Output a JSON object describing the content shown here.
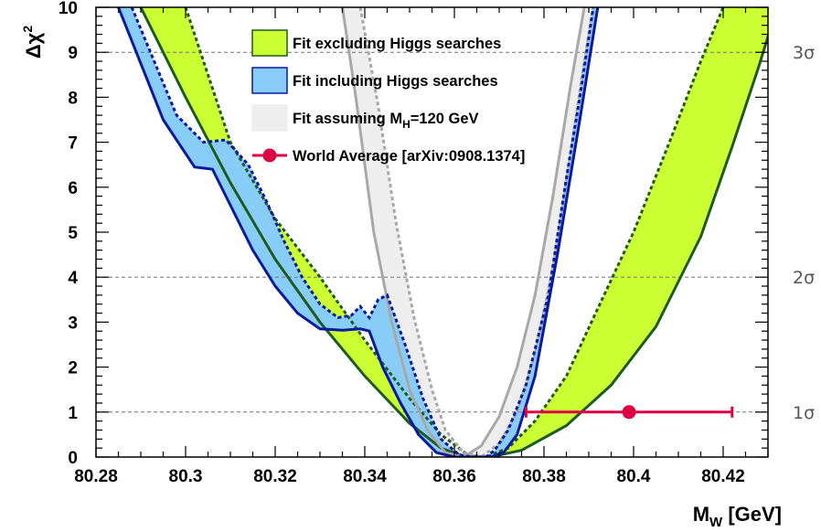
{
  "chart_data": {
    "type": "area",
    "xlabel": {
      "main": "M",
      "sub": "W",
      "rest": " [GeV]"
    },
    "ylabel": {
      "main": "Δχ",
      "sup": "2"
    },
    "xlim": [
      80.28,
      80.43
    ],
    "ylim": [
      0,
      10
    ],
    "x_ticks": [
      "80.28",
      "80.3",
      "80.32",
      "80.34",
      "80.36",
      "80.38",
      "80.4",
      "80.42"
    ],
    "x_tick_values": [
      80.28,
      80.3,
      80.32,
      80.34,
      80.36,
      80.38,
      80.4,
      80.42
    ],
    "y_ticks": [
      "0",
      "1",
      "2",
      "3",
      "4",
      "5",
      "6",
      "7",
      "8",
      "9",
      "10"
    ],
    "y_tick_values": [
      0,
      1,
      2,
      3,
      4,
      5,
      6,
      7,
      8,
      9,
      10
    ],
    "sigma_levels": [
      {
        "value": 1,
        "label": "1σ"
      },
      {
        "value": 4,
        "label": "2σ"
      },
      {
        "value": 9,
        "label": "3σ"
      }
    ],
    "colors": {
      "excl_fill": "#ccff33",
      "excl_line": "#1f5a1f",
      "incl_fill": "#88ccf8",
      "incl_line": "#0a1aa0",
      "mh120_fill": "#eeeeee",
      "mh120_line": "#a8a8a8",
      "world_avg": "#dd0044"
    },
    "series": [
      {
        "name": "Fit excluding Higgs searches",
        "solid": [
          [
            80.29,
            10
          ],
          [
            80.3,
            8.0
          ],
          [
            80.31,
            6.1
          ],
          [
            80.32,
            4.4
          ],
          [
            80.33,
            3.0
          ],
          [
            80.34,
            1.8
          ],
          [
            80.35,
            0.75
          ],
          [
            80.357,
            0.2
          ],
          [
            80.362,
            0.02
          ],
          [
            80.368,
            0.0
          ],
          [
            80.375,
            0.15
          ],
          [
            80.385,
            0.7
          ],
          [
            80.395,
            1.6
          ],
          [
            80.405,
            2.9
          ],
          [
            80.415,
            4.9
          ],
          [
            80.422,
            6.9
          ],
          [
            80.428,
            8.7
          ],
          [
            80.432,
            10
          ]
        ],
        "dotted": [
          [
            80.3,
            10
          ],
          [
            80.305,
            8.5
          ],
          [
            80.31,
            7.0
          ],
          [
            80.32,
            5.3
          ],
          [
            80.33,
            4.0
          ],
          [
            80.34,
            2.6
          ],
          [
            80.35,
            1.3
          ],
          [
            80.357,
            0.5
          ],
          [
            80.363,
            0.05
          ],
          [
            80.367,
            0.0
          ],
          [
            80.372,
            0.2
          ],
          [
            80.378,
            0.8
          ],
          [
            80.385,
            1.8
          ],
          [
            80.392,
            3.3
          ],
          [
            80.4,
            5.0
          ],
          [
            80.408,
            7.0
          ],
          [
            80.415,
            8.8
          ],
          [
            80.42,
            10
          ]
        ]
      },
      {
        "name": "Fit including Higgs searches",
        "solid": [
          [
            80.285,
            10
          ],
          [
            80.295,
            7.5
          ],
          [
            80.302,
            6.45
          ],
          [
            80.306,
            6.4
          ],
          [
            80.31,
            5.6
          ],
          [
            80.315,
            4.6
          ],
          [
            80.32,
            3.8
          ],
          [
            80.325,
            3.2
          ],
          [
            80.33,
            2.85
          ],
          [
            80.335,
            2.82
          ],
          [
            80.339,
            2.85
          ],
          [
            80.341,
            2.8
          ],
          [
            80.344,
            2.0
          ],
          [
            80.348,
            1.2
          ],
          [
            80.352,
            0.5
          ],
          [
            80.356,
            0.1
          ],
          [
            80.36,
            0.0
          ],
          [
            80.368,
            0.0
          ],
          [
            80.371,
            0.1
          ],
          [
            80.374,
            0.5
          ],
          [
            80.378,
            1.8
          ],
          [
            80.383,
            4.5
          ],
          [
            80.388,
            7.5
          ],
          [
            80.392,
            10
          ]
        ],
        "dotted": [
          [
            80.288,
            10
          ],
          [
            80.298,
            7.6
          ],
          [
            80.304,
            7.0
          ],
          [
            80.309,
            7.05
          ],
          [
            80.314,
            6.5
          ],
          [
            80.318,
            5.7
          ],
          [
            80.322,
            4.8
          ],
          [
            80.326,
            4.0
          ],
          [
            80.33,
            3.4
          ],
          [
            80.334,
            3.1
          ],
          [
            80.337,
            3.15
          ],
          [
            80.339,
            3.35
          ],
          [
            80.341,
            3.1
          ],
          [
            80.343,
            3.5
          ],
          [
            80.345,
            3.6
          ],
          [
            80.349,
            2.5
          ],
          [
            80.353,
            1.3
          ],
          [
            80.357,
            0.4
          ],
          [
            80.361,
            0.05
          ],
          [
            80.364,
            0.0
          ],
          [
            80.367,
            0.0
          ],
          [
            80.369,
            0.15
          ],
          [
            80.372,
            0.6
          ],
          [
            80.376,
            1.6
          ],
          [
            80.381,
            3.6
          ],
          [
            80.385,
            6.2
          ],
          [
            80.388,
            8.0
          ],
          [
            80.391,
            10
          ]
        ]
      },
      {
        "name": "Fit assuming M_H=120 GeV",
        "solid": [
          [
            80.335,
            10
          ],
          [
            80.338,
            8.0
          ],
          [
            80.342,
            5.0
          ],
          [
            80.346,
            3.0
          ],
          [
            80.35,
            1.5
          ],
          [
            80.354,
            0.6
          ],
          [
            80.358,
            0.1
          ],
          [
            80.362,
            0.0
          ],
          [
            80.366,
            0.25
          ],
          [
            80.37,
            0.9
          ],
          [
            80.374,
            2.0
          ],
          [
            80.378,
            3.6
          ],
          [
            80.382,
            5.8
          ],
          [
            80.386,
            8.3
          ],
          [
            80.389,
            10
          ]
        ],
        "dotted": [
          [
            80.339,
            10
          ],
          [
            80.343,
            7.8
          ],
          [
            80.347,
            5.2
          ],
          [
            80.351,
            3.1
          ],
          [
            80.355,
            1.5
          ],
          [
            80.358,
            0.6
          ],
          [
            80.362,
            0.1
          ],
          [
            80.366,
            0.0
          ],
          [
            80.37,
            0.3
          ],
          [
            80.374,
            1.0
          ],
          [
            80.378,
            2.3
          ],
          [
            80.382,
            4.2
          ],
          [
            80.386,
            6.8
          ],
          [
            80.389,
            8.8
          ],
          [
            80.391,
            10
          ]
        ]
      }
    ],
    "world_average": {
      "name": "World Average [arXiv:0908.1374]",
      "x": 80.399,
      "xerr": 0.023,
      "y": 1
    },
    "legend": [
      {
        "style": "excl",
        "label": "Fit excluding Higgs searches"
      },
      {
        "style": "incl",
        "label": "Fit including Higgs searches"
      },
      {
        "style": "mh120",
        "label_main": "Fit assuming M",
        "label_sub": "H",
        "label_rest": "=120 GeV"
      },
      {
        "style": "wa",
        "label": "World Average [arXiv:0908.1374]"
      }
    ],
    "legend_position": "top-center",
    "grid": "dashed horizontal lines at Δχ² = 1, 4, 9"
  }
}
